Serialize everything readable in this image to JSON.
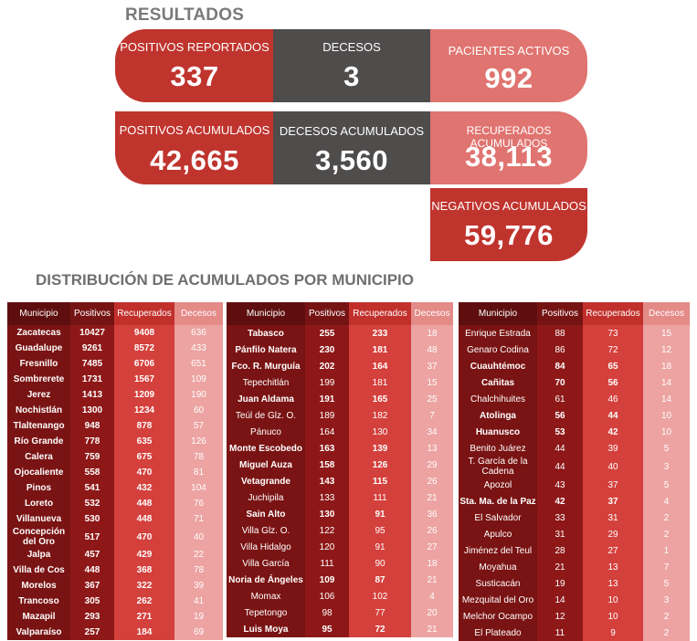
{
  "results_title": "RESULTADOS",
  "cards": {
    "positivos_reportados": {
      "label": "POSITIVOS REPORTADOS",
      "value": "337"
    },
    "decesos": {
      "label": "DECESOS",
      "value": "3"
    },
    "pacientes_activos": {
      "label": "PACIENTES ACTIVOS",
      "value": "992"
    },
    "positivos_acumulados": {
      "label": "POSITIVOS ACUMULADOS",
      "value": "42,665"
    },
    "decesos_acumulados": {
      "label": "DECESOS ACUMULADOS",
      "value": "3,560"
    },
    "recuperados_acumulados": {
      "label": "RECUPERADOS ACUMULADOS",
      "value": "38,113"
    },
    "negativos_acumulados": {
      "label": "NEGATIVOS ACUMULADOS",
      "value": "59,776"
    }
  },
  "distribution_title": "DISTRIBUCIÓN DE ACUMULADOS POR MUNICIPIO",
  "columns": [
    "Municipio",
    "Positivos",
    "Recuperados",
    "Decesos"
  ],
  "colors": {
    "dark_red": "#7a1313",
    "red": "#c0342e",
    "gray": "#4f4c4c",
    "salmon": "#e07470",
    "pink": "#eca3a1"
  },
  "tables": [
    [
      [
        "Zacatecas",
        "10427",
        "9408",
        "636"
      ],
      [
        "Guadalupe",
        "9261",
        "8572",
        "433"
      ],
      [
        "Fresnillo",
        "7485",
        "6706",
        "651"
      ],
      [
        "Sombrerete",
        "1731",
        "1567",
        "109"
      ],
      [
        "Jerez",
        "1413",
        "1209",
        "190"
      ],
      [
        "Nochistlán",
        "1300",
        "1234",
        "60"
      ],
      [
        "Tlaltenango",
        "948",
        "878",
        "57"
      ],
      [
        "Río Grande",
        "778",
        "635",
        "126"
      ],
      [
        "Calera",
        "759",
        "675",
        "78"
      ],
      [
        "Ojocaliente",
        "558",
        "470",
        "81"
      ],
      [
        "Pinos",
        "541",
        "432",
        "104"
      ],
      [
        "Loreto",
        "532",
        "448",
        "76"
      ],
      [
        "Villanueva",
        "530",
        "448",
        "71"
      ],
      [
        "Concepción del Oro",
        "517",
        "470",
        "40"
      ],
      [
        "Jalpa",
        "457",
        "429",
        "22"
      ],
      [
        "Villa de Cos",
        "448",
        "368",
        "78"
      ],
      [
        "Morelos",
        "367",
        "322",
        "39"
      ],
      [
        "Trancoso",
        "305",
        "262",
        "41"
      ],
      [
        "Mazapil",
        "293",
        "271",
        "19"
      ],
      [
        "Valparaíso",
        "257",
        "184",
        "69"
      ]
    ],
    [
      [
        "Tabasco",
        "255",
        "233",
        "18"
      ],
      [
        "Pánfilo Natera",
        "230",
        "181",
        "48"
      ],
      [
        "Fco. R. Murguía",
        "202",
        "164",
        "37"
      ],
      [
        "Tepechitlán",
        "199",
        "181",
        "15"
      ],
      [
        "Juan Aldama",
        "191",
        "165",
        "25"
      ],
      [
        "Teúl de Glz. O.",
        "189",
        "182",
        "7"
      ],
      [
        "Pánuco",
        "164",
        "130",
        "34"
      ],
      [
        "Monte Escobedo",
        "163",
        "139",
        "13"
      ],
      [
        "Miguel Auza",
        "158",
        "126",
        "29"
      ],
      [
        "Vetagrande",
        "143",
        "115",
        "26"
      ],
      [
        "Juchipila",
        "133",
        "111",
        "21"
      ],
      [
        "Sain Alto",
        "130",
        "91",
        "36"
      ],
      [
        "Villa Glz. O.",
        "122",
        "95",
        "26"
      ],
      [
        "Villa Hidalgo",
        "120",
        "91",
        "27"
      ],
      [
        "Villa García",
        "111",
        "90",
        "18"
      ],
      [
        "Noria de Ángeles",
        "109",
        "87",
        "21"
      ],
      [
        "Momax",
        "106",
        "102",
        "4"
      ],
      [
        "Tepetongo",
        "98",
        "77",
        "20"
      ],
      [
        "Luis Moya",
        "95",
        "72",
        "21"
      ]
    ],
    [
      [
        "Enrique Estrada",
        "88",
        "73",
        "15"
      ],
      [
        "Genaro Codina",
        "86",
        "72",
        "12"
      ],
      [
        "Cuauhtémoc",
        "84",
        "65",
        "18"
      ],
      [
        "Cañitas",
        "70",
        "56",
        "14"
      ],
      [
        "Chalchihuites",
        "61",
        "46",
        "14"
      ],
      [
        "Atolinga",
        "56",
        "44",
        "10"
      ],
      [
        "Huanusco",
        "53",
        "42",
        "10"
      ],
      [
        "Benito Juárez",
        "44",
        "39",
        "5"
      ],
      [
        "T. García de la Cadena",
        "44",
        "40",
        "3"
      ],
      [
        "Apozol",
        "43",
        "37",
        "5"
      ],
      [
        "Sta. Ma. de la Paz",
        "42",
        "37",
        "4"
      ],
      [
        "El Salvador",
        "33",
        "31",
        "2"
      ],
      [
        "Apulco",
        "31",
        "29",
        "2"
      ],
      [
        "Jiménez del Teul",
        "28",
        "27",
        "1"
      ],
      [
        "Moyahua",
        "21",
        "13",
        "7"
      ],
      [
        "Susticacán",
        "19",
        "13",
        "5"
      ],
      [
        "Mezquital del Oro",
        "14",
        "10",
        "3"
      ],
      [
        "Melchor Ocampo",
        "12",
        "10",
        "2"
      ],
      [
        "El Plateado",
        "11",
        "9",
        "2"
      ]
    ]
  ]
}
